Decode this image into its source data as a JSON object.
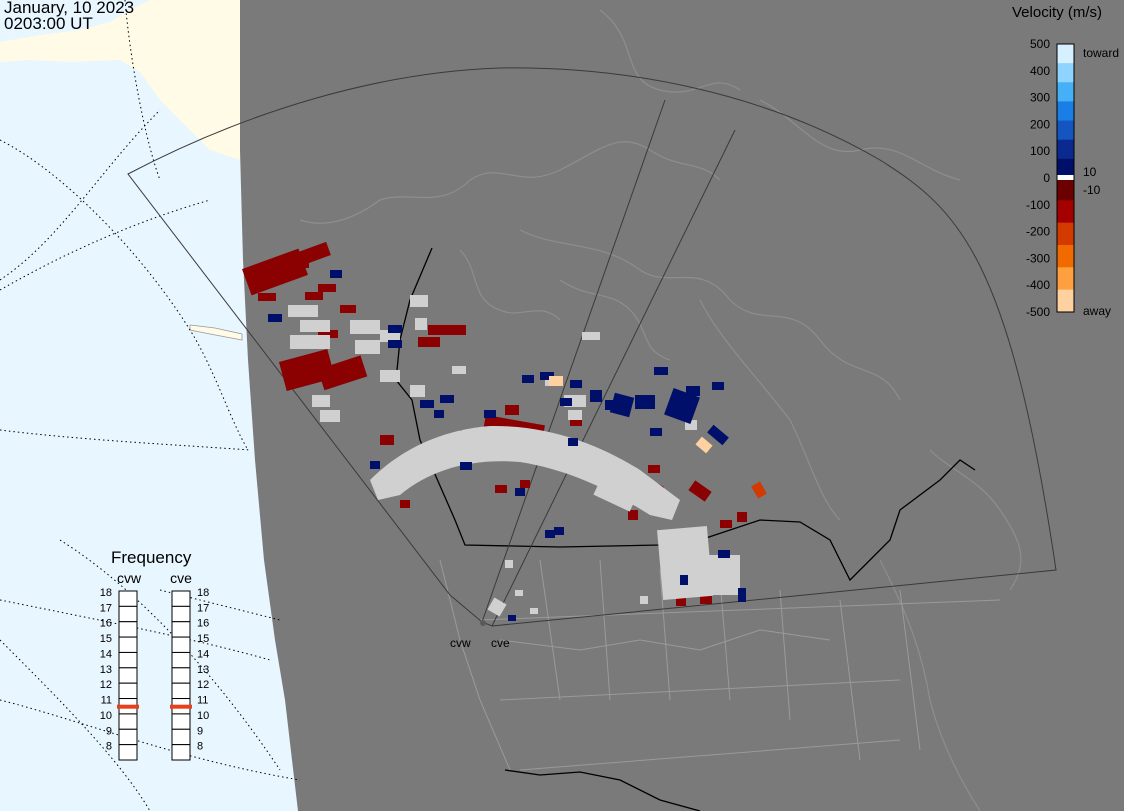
{
  "header": {
    "date": "January, 10 2023",
    "time": "0203:00 UT"
  },
  "colorbar": {
    "title": "Velocity (m/s)",
    "ticks": [
      "500",
      "400",
      "300",
      "200",
      "100",
      "0",
      "-100",
      "-200",
      "-300",
      "-400",
      "-500"
    ],
    "toward_label": "toward",
    "away_label": "away",
    "pos_threshold": "10",
    "neg_threshold": "-10",
    "colors": [
      "#d7f0ff",
      "#8fd3ff",
      "#45b0f5",
      "#1a7ee6",
      "#1455c0",
      "#0a2a90",
      "#00106a",
      "#6a0000",
      "#a50000",
      "#d23a00",
      "#f06a00",
      "#ffa040",
      "#ffd0a0"
    ]
  },
  "frequency": {
    "title": "Frequency",
    "radars": [
      {
        "label": "cvw",
        "value": 11
      },
      {
        "label": "cve",
        "value": 11
      }
    ],
    "scale": [
      "18",
      "17",
      "16",
      "15",
      "14",
      "13",
      "12",
      "11",
      "10",
      "9",
      "8"
    ]
  },
  "stations": {
    "west": "cvw",
    "east": "cve"
  },
  "colors": {
    "night": "#7a7a7a",
    "day_land": "#fffbe6",
    "day_ocean": "#e8f6ff",
    "ground_scatter": "#d0d0d0",
    "toward_low": "#00106a",
    "away_low": "#8b0000"
  }
}
